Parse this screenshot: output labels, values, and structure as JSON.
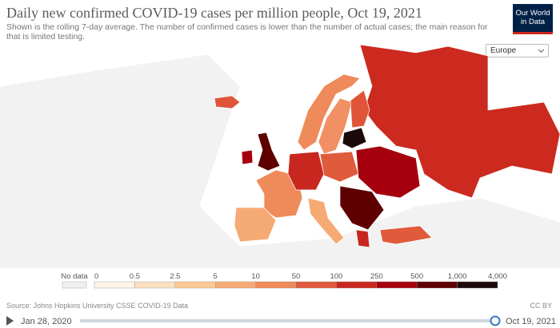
{
  "header": {
    "title": "Daily new confirmed COVID-19 cases per million people, Oct 19, 2021",
    "subtitle": "Shown is the rolling 7-day average. The number of confirmed cases is lower than the number of actual cases; the main reason for that is limited testing.",
    "logo": "Our World in Data"
  },
  "region_selector": "Europe",
  "legend": {
    "no_data": "No data",
    "ticks": [
      "0",
      "0.5",
      "2.5",
      "5",
      "10",
      "50",
      "100",
      "250",
      "500",
      "1,000",
      "4,000"
    ],
    "colors": [
      "#fdf3e6",
      "#fbe1c0",
      "#f9c894",
      "#f6aa73",
      "#ef8a5a",
      "#e05a3c",
      "#c8271f",
      "#a5000d",
      "#5e0000",
      "#1c0a0a"
    ]
  },
  "footer": {
    "source": "Source: Johns Hopkins University CSSE COVID-19 Data",
    "license": "CC BY"
  },
  "timeline": {
    "start": "Jan 28, 2020",
    "end": "Oct 19, 2021"
  }
}
